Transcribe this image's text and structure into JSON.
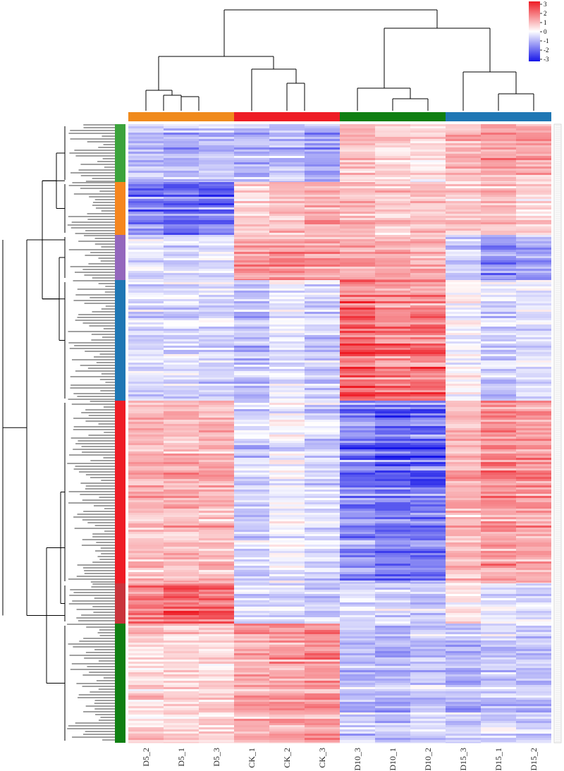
{
  "chart_data": {
    "type": "heatmap",
    "title": "",
    "xlabel": "",
    "ylabel": "",
    "columns": [
      "D5_2",
      "D5_1",
      "D5_3",
      "CK_1",
      "CK_2",
      "CK_3",
      "D10_3",
      "D10_1",
      "D10_2",
      "D15_3",
      "D15_1",
      "D15_2"
    ],
    "column_groups": [
      {
        "members": [
          "D5_2",
          "D5_1",
          "D5_3"
        ],
        "color": "#f08a1c"
      },
      {
        "members": [
          "CK_1",
          "CK_2",
          "CK_3"
        ],
        "color": "#ee1c25"
      },
      {
        "members": [
          "D10_3",
          "D10_1",
          "D10_2"
        ],
        "color": "#0f7f12"
      },
      {
        "members": [
          "D15_3",
          "D15_1",
          "D15_2"
        ],
        "color": "#1f77b4"
      }
    ],
    "row_clusters": [
      {
        "id": 1,
        "color": "#3ca33c",
        "rows": 0.094,
        "profile": [
          -0.8,
          -1.0,
          -0.8,
          -1.0,
          -0.9,
          -1.2,
          0.9,
          0.6,
          0.4,
          1.0,
          1.3,
          1.2
        ]
      },
      {
        "id": 2,
        "color": "#f5861f",
        "rows": 0.086,
        "profile": [
          -1.6,
          -1.9,
          -1.8,
          0.6,
          0.9,
          1.1,
          1.0,
          0.7,
          0.8,
          0.6,
          0.8,
          0.5
        ]
      },
      {
        "id": 3,
        "color": "#9467bd",
        "rows": 0.073,
        "profile": [
          -0.4,
          -0.6,
          -0.5,
          1.3,
          1.5,
          1.4,
          1.2,
          1.1,
          1.0,
          -0.8,
          -1.4,
          -1.2
        ]
      },
      {
        "id": 4,
        "color": "#1f77b4",
        "rows": 0.195,
        "profile": [
          -0.5,
          -0.5,
          -0.6,
          -0.9,
          -0.4,
          -0.7,
          2.3,
          1.9,
          2.0,
          0.0,
          -0.6,
          -0.4
        ]
      },
      {
        "id": 5,
        "color": "#ee1c25",
        "rows": 0.295,
        "profile": [
          1.0,
          1.0,
          1.0,
          -0.6,
          -0.2,
          -0.6,
          -1.8,
          -2.0,
          -2.0,
          1.0,
          1.6,
          1.3
        ]
      },
      {
        "id": 6,
        "color": "#c9343c",
        "rows": 0.065,
        "profile": [
          1.6,
          2.0,
          1.9,
          -0.6,
          -0.5,
          -0.6,
          -0.4,
          -0.5,
          -0.7,
          0.2,
          -0.3,
          -0.4
        ]
      },
      {
        "id": 7,
        "color": "#0f7f12",
        "rows": 0.192,
        "profile": [
          0.6,
          0.7,
          0.6,
          1.2,
          1.3,
          1.5,
          -0.8,
          -0.9,
          -0.7,
          -0.9,
          -0.6,
          -0.7
        ]
      }
    ],
    "value_range": [
      -3,
      3
    ],
    "legend": {
      "position": "top-right",
      "ticks": [
        "3",
        "2",
        "1",
        "0",
        "-1",
        "-2",
        "-3"
      ],
      "colors": {
        "high": "#ee1c25",
        "mid": "#ffffff",
        "low": "#1515e8"
      }
    },
    "dendrograms": {
      "columns": "top",
      "rows": "left"
    }
  }
}
